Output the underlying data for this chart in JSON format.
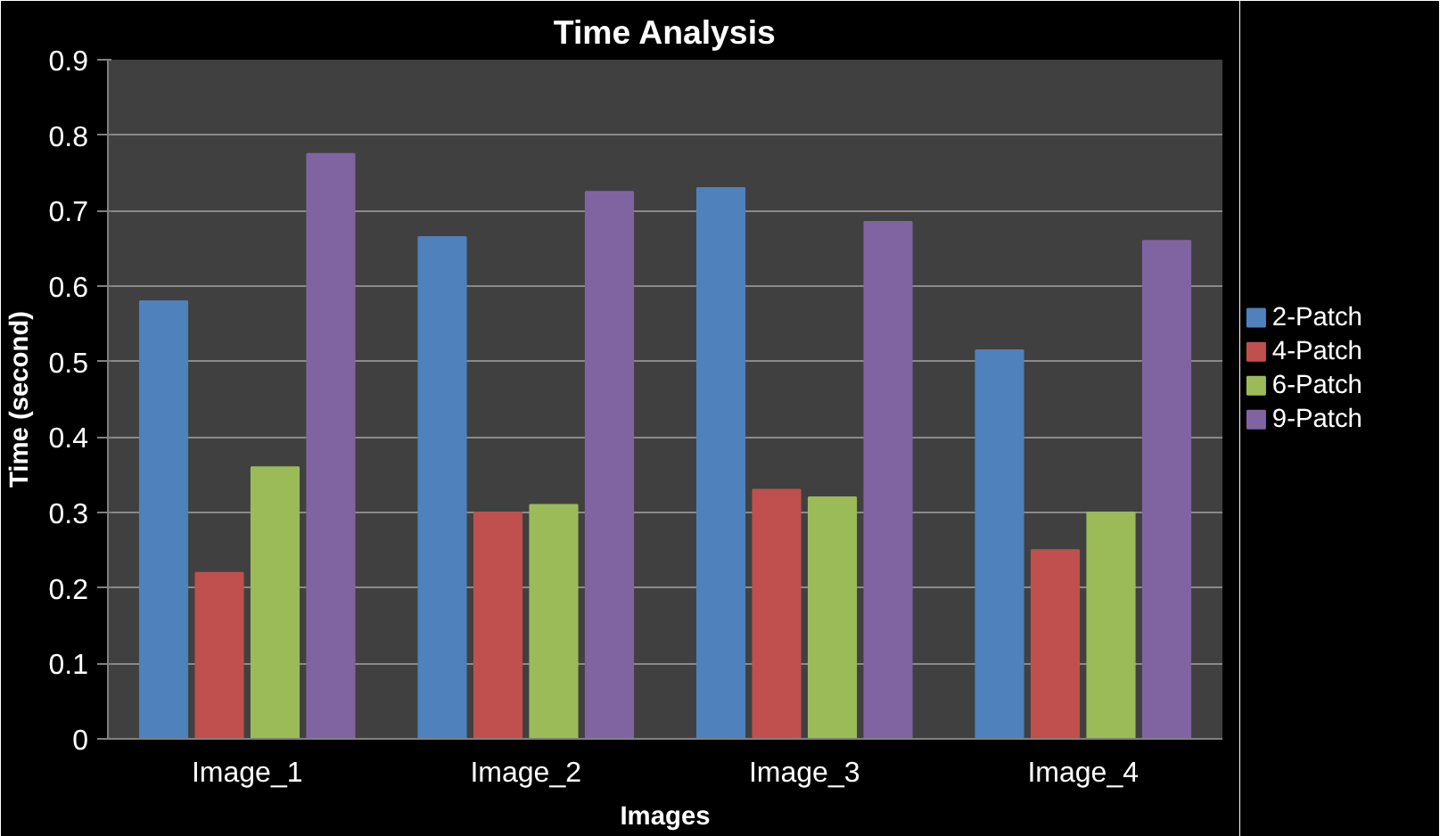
{
  "chart_data": {
    "type": "bar",
    "title": "Time Analysis",
    "xlabel": "Images",
    "ylabel": "Time (second)",
    "categories": [
      "Image_1",
      "Image_2",
      "Image_3",
      "Image_4"
    ],
    "series": [
      {
        "name": "2-Patch",
        "color": "#4f81bd",
        "values": [
          0.58,
          0.665,
          0.73,
          0.515
        ]
      },
      {
        "name": "4-Patch",
        "color": "#c0504d",
        "values": [
          0.22,
          0.3,
          0.33,
          0.25
        ]
      },
      {
        "name": "6-Patch",
        "color": "#9bbb59",
        "values": [
          0.36,
          0.31,
          0.32,
          0.3
        ]
      },
      {
        "name": "9-Patch",
        "color": "#8064a2",
        "values": [
          0.775,
          0.725,
          0.685,
          0.66
        ]
      }
    ],
    "ylim": [
      0,
      0.9
    ],
    "yticks": [
      0,
      0.1,
      0.2,
      0.3,
      0.4,
      0.5,
      0.6,
      0.7,
      0.8,
      0.9
    ],
    "grid": "y",
    "legend": "right"
  }
}
